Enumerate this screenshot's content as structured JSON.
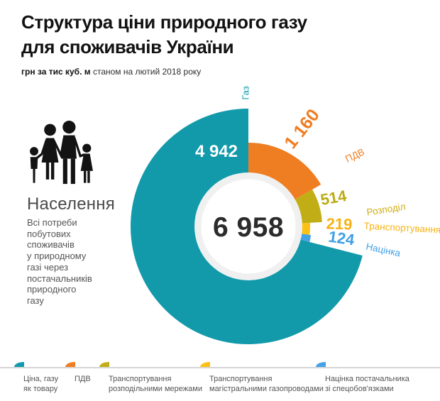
{
  "title": {
    "line1": "Структура ціни природного газу",
    "line2": "для споживачів України"
  },
  "subtitle": {
    "bold": "грн за тис куб. м",
    "rest": " станом на лютий 2018 року"
  },
  "audience": {
    "heading": "Населення",
    "description": "Всі потреби\nпобутових\nспоживачів\nу природному\nгазі через\nпостачальників\nприродного\nгазу"
  },
  "chart_data": {
    "type": "pie",
    "title": "Структура ціни природного газу для споживачів України",
    "units": "грн за тис куб. м",
    "as_of": "станом на лютий 2018 року",
    "total": 6958,
    "total_display": "6 958",
    "segments": [
      {
        "id": "gas",
        "name": "Газ",
        "value": 4942,
        "value_display": "4 942",
        "color": "#129aab",
        "value_color": "#ffffff",
        "name_color": "#129aab",
        "legend": "Ціна, газу як товару"
      },
      {
        "id": "vat",
        "name": "ПДВ",
        "value": 1160,
        "value_display": "1 160",
        "color": "#ef7d22",
        "value_color": "#ef7d22",
        "name_color": "#ef7d22",
        "legend": "ПДВ"
      },
      {
        "id": "distribution",
        "name": "Розподіл",
        "value": 514,
        "value_display": "514",
        "color": "#c1ae16",
        "value_color": "#bcab14",
        "name_color": "#cfad14",
        "legend": "Транспортування розподільними мережами"
      },
      {
        "id": "transmission",
        "name": "Транспортування",
        "value": 219,
        "value_display": "219",
        "color": "#fbc114",
        "value_color": "#f7b214",
        "name_color": "#f7b214",
        "legend": "Транспортування магістральними газопроводами"
      },
      {
        "id": "markup",
        "name": "Націнка",
        "value": 124,
        "value_display": "124",
        "color": "#45a2e6",
        "value_color": "#3fa0e5",
        "name_color": "#3fa0e5",
        "legend": "Націнка постачальника зі спецобов'язками"
      }
    ]
  },
  "legend": {
    "items": [
      {
        "line1": "Ціна, газу",
        "line2": "як товару"
      },
      {
        "line1": "ПДВ",
        "line2": ""
      },
      {
        "line1": "Транспортування",
        "line2": "розподільними мережами"
      },
      {
        "line1": "Транспортування",
        "line2": "магістральними газопроводами"
      },
      {
        "line1": "Націнка постачальника",
        "line2": "зі спецобов'язками"
      }
    ]
  }
}
